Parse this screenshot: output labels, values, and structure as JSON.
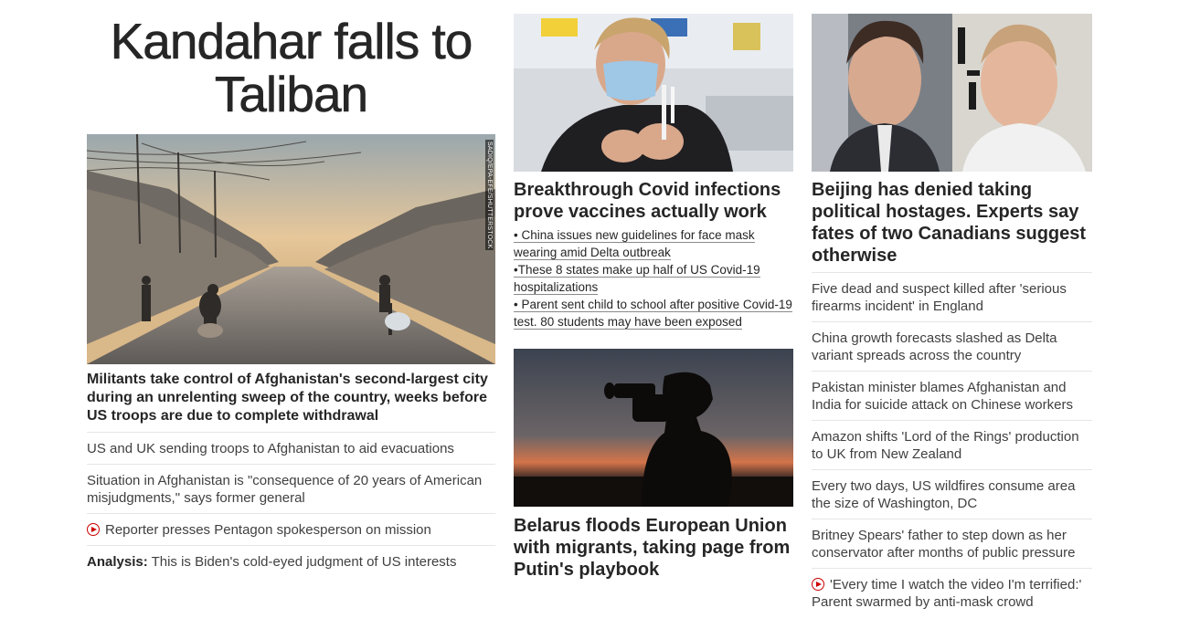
{
  "col1": {
    "banner": "Kandahar falls to Taliban",
    "image_credit": "SADIQ/EPA-EFE/SHUTTERSTOCK",
    "lead": "Militants take control of Afghanistan's second-largest city during an unrelenting sweep of the country, weeks before US troops are due to complete withdrawal",
    "items": [
      {
        "text": "US and UK sending troops to Afghanistan to aid evacuations"
      },
      {
        "text": "Situation in Afghanistan is \"consequence of 20 years of American misjudgments,\" says former general"
      },
      {
        "text": "Reporter presses Pentagon spokesperson on mission",
        "icon": "play-icon"
      },
      {
        "prefix": "Analysis:",
        "text": " This is Biden's cold-eyed judgment of US interests"
      }
    ]
  },
  "col2": {
    "story1": {
      "headline": "Breakthrough Covid infections prove vaccines actually work",
      "sublinks": [
        "• China issues new guidelines for face mask wearing amid Delta outbreak",
        "•These 8 states make up half of US Covid-19 hospitalizations",
        "• Parent sent child to school after positive Covid-19 test. 80 students may have been exposed"
      ]
    },
    "story2": {
      "headline": "Belarus floods European Union with migrants, taking page from Putin's playbook"
    }
  },
  "col3": {
    "headline": "Beijing has denied taking political hostages. Experts say fates of two Canadians suggest otherwise",
    "items": [
      {
        "text": "Five dead and suspect killed after 'serious firearms incident' in England"
      },
      {
        "text": "China growth forecasts slashed as Delta variant spreads across the country"
      },
      {
        "text": "Pakistan minister blames Afghanistan and India for suicide attack on Chinese workers"
      },
      {
        "text": "Amazon shifts 'Lord of the Rings' production to UK from New Zealand"
      },
      {
        "text": "Every two days, US wildfires consume area the size of Washington, DC"
      },
      {
        "text": "Britney Spears' father to step down as her conservator after months of public pressure"
      },
      {
        "text": "'Every time I watch the video I'm terrified:' Parent swarmed by anti-mask crowd",
        "icon": "play-icon"
      }
    ]
  },
  "colors": {
    "accent_red": "#cc0000",
    "text": "#262626",
    "divider": "#e6e6e6"
  }
}
